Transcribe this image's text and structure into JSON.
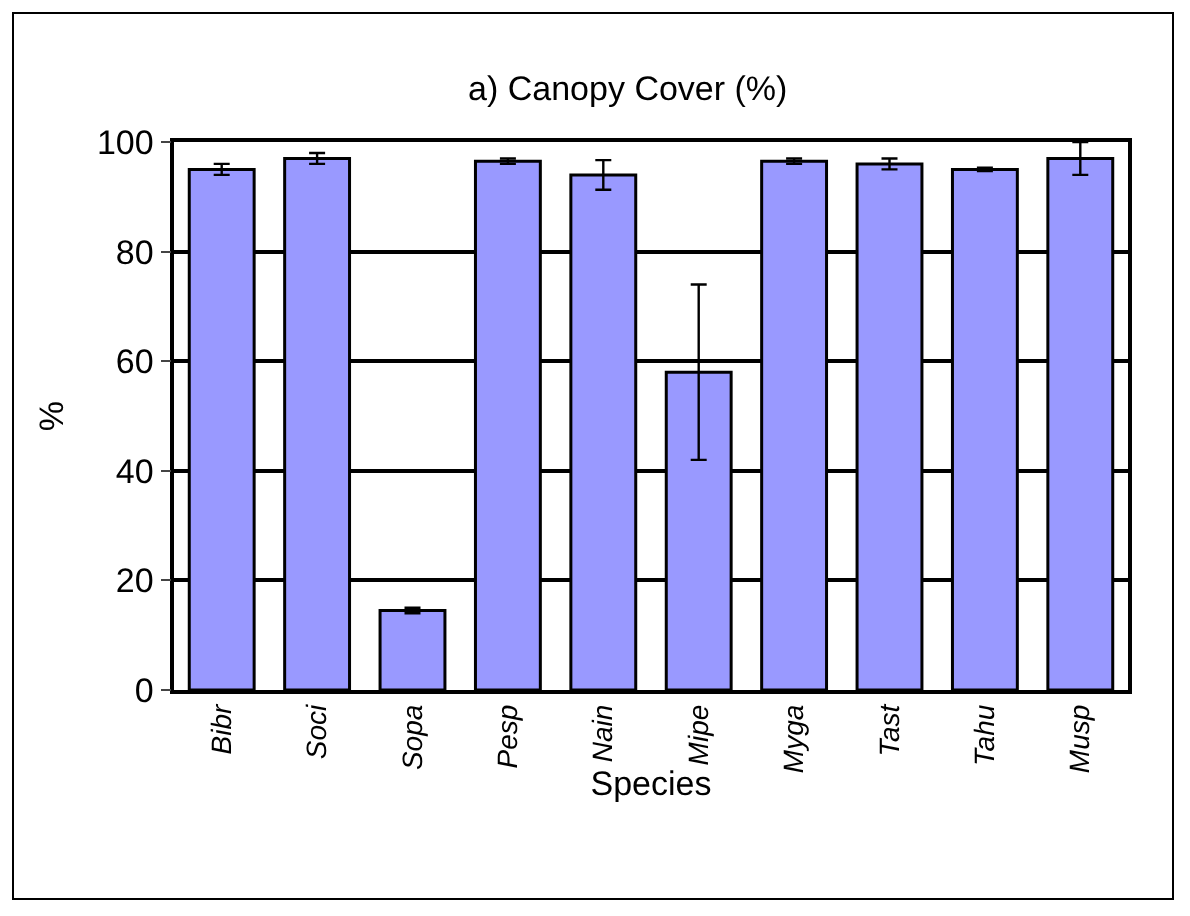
{
  "chart_data": {
    "type": "bar",
    "title": "a) Canopy Cover (%)",
    "xlabel": "Species",
    "ylabel": "%",
    "categories": [
      "Bibr",
      "Soci",
      "Sopa",
      "Pesp",
      "Nain",
      "Mipe",
      "Myga",
      "Tast",
      "Tahu",
      "Musp"
    ],
    "values": [
      95,
      97,
      14.5,
      96.5,
      94,
      58,
      96.5,
      96,
      95,
      97
    ],
    "errors": [
      1,
      1,
      0.5,
      0.5,
      2.7,
      16,
      0.5,
      1,
      0.3,
      3
    ],
    "color": "#9999ff",
    "ylim": [
      0,
      100
    ],
    "yticks": [
      0,
      20,
      40,
      60,
      80,
      100
    ],
    "grid": "y",
    "legend": false
  }
}
